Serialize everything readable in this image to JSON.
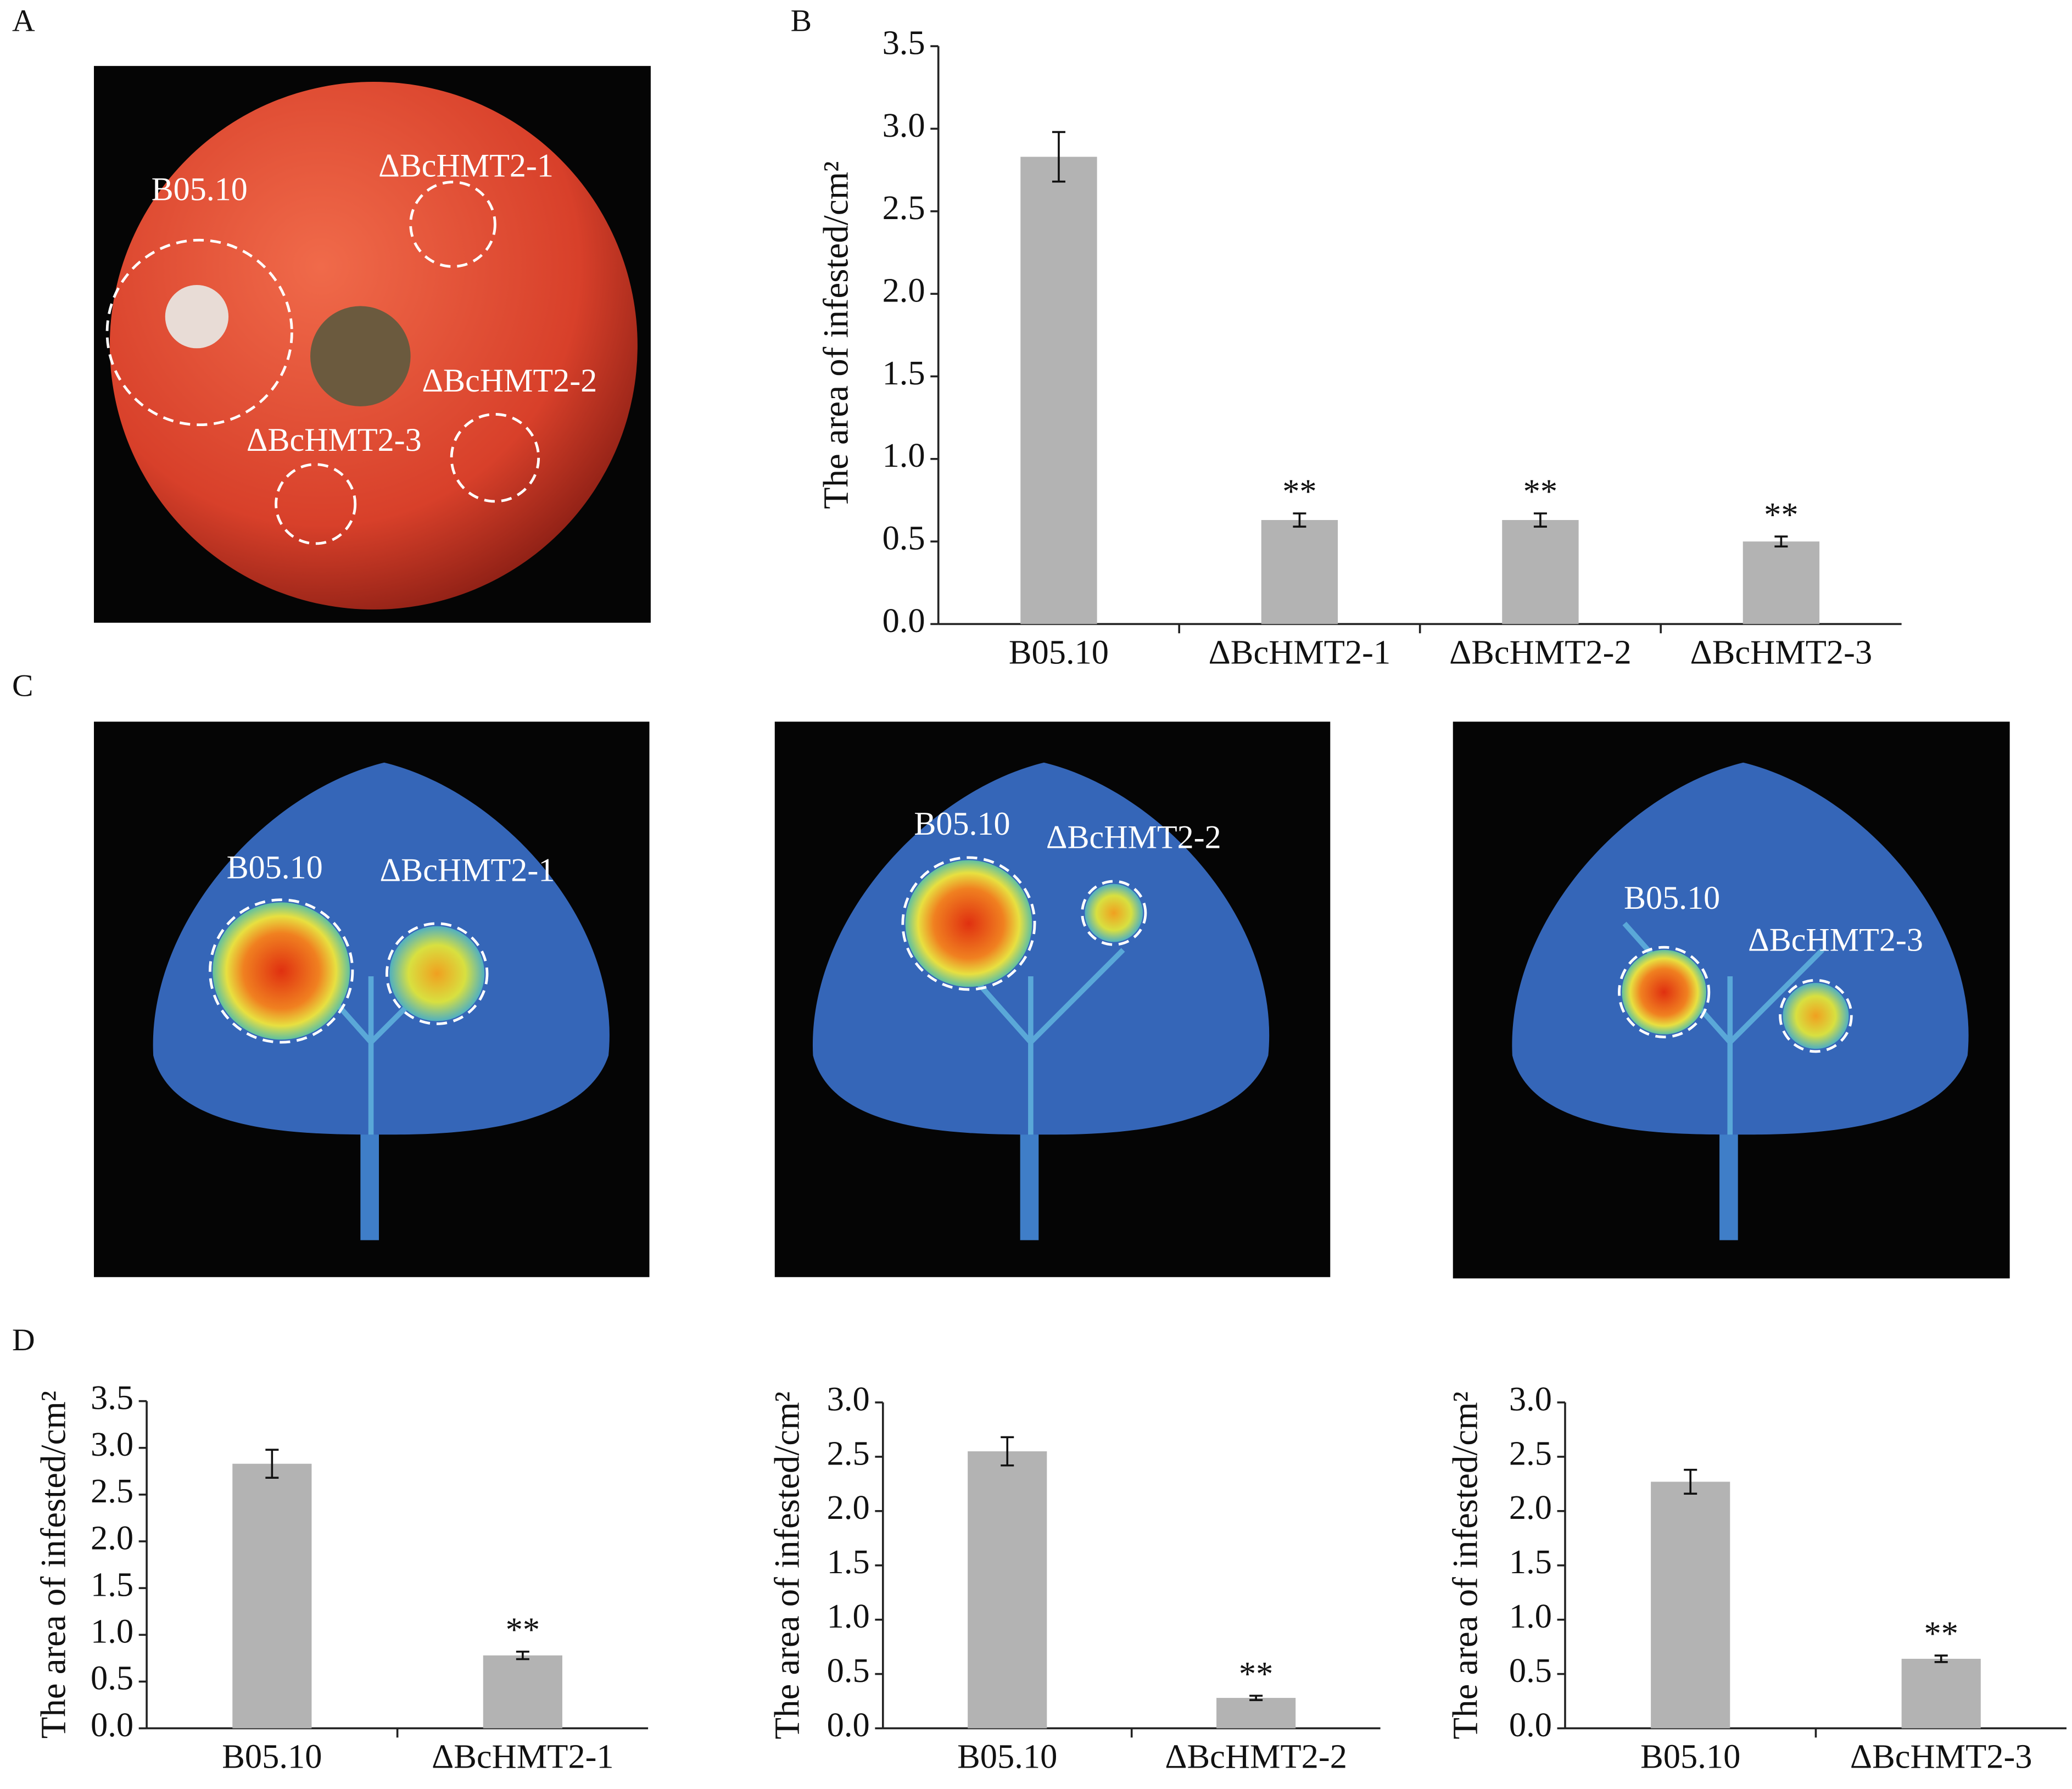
{
  "panel_labels": [
    "A",
    "B",
    "C",
    "D"
  ],
  "photo_a": {
    "labels": [
      "B05.10",
      "ΔBcHMT2-1",
      "ΔBcHMT2-2",
      "ΔBcHMT2-3"
    ]
  },
  "photo_c": {
    "leaves": [
      {
        "labels": [
          "B05.10",
          "ΔBcHMT2-1"
        ]
      },
      {
        "labels": [
          "B05.10",
          "ΔBcHMT2-2"
        ]
      },
      {
        "labels": [
          "B05.10",
          "ΔBcHMT2-3"
        ]
      }
    ]
  },
  "chart_data": [
    {
      "type": "bar",
      "y_label": "The area of infested/cm²",
      "color": "#b3b3b3",
      "categories": [
        "B05.10",
        "ΔBcHMT2-1",
        "ΔBcHMT2-2",
        "ΔBcHMT2-3"
      ],
      "values": [
        2.83,
        0.63,
        0.63,
        0.5
      ],
      "errors": [
        0.15,
        0.04,
        0.04,
        0.03
      ],
      "significance": [
        null,
        "**",
        "**",
        "**"
      ],
      "ylim": [
        0,
        3.5
      ],
      "yticks": [
        {
          "value": 0,
          "label": "0.0"
        },
        0.5,
        {
          "value": 1,
          "label": "1.0"
        },
        1.5,
        {
          "value": 2,
          "label": "2.0"
        },
        2.5,
        {
          "value": 3,
          "label": "3.0"
        },
        3.5
      ]
    },
    {
      "type": "bar",
      "y_label": "The area of infested/cm²",
      "color": "#b3b3b3",
      "categories": [
        "B05.10",
        "ΔBcHMT2-1"
      ],
      "values": [
        2.83,
        0.78
      ],
      "errors": [
        0.15,
        0.04
      ],
      "significance": [
        null,
        "**"
      ],
      "ylim": [
        0,
        3.5
      ],
      "yticks": [
        {
          "value": 0,
          "label": "0.0"
        },
        0.5,
        {
          "value": 1,
          "label": "1.0"
        },
        1.5,
        {
          "value": 2,
          "label": "2.0"
        },
        2.5,
        {
          "value": 3,
          "label": "3.0"
        },
        3.5
      ]
    },
    {
      "type": "bar",
      "y_label": "The area of infested/cm²",
      "color": "#b3b3b3",
      "categories": [
        "B05.10",
        "ΔBcHMT2-2"
      ],
      "values": [
        2.55,
        0.28
      ],
      "errors": [
        0.13,
        0.02
      ],
      "significance": [
        null,
        "**"
      ],
      "ylim": [
        0,
        3
      ],
      "yticks": [
        {
          "value": 0,
          "label": "0.0"
        },
        0.5,
        {
          "value": 1,
          "label": "1.0"
        },
        1.5,
        {
          "value": 2,
          "label": "2.0"
        },
        2.5,
        {
          "value": 3,
          "label": "3.0"
        }
      ]
    },
    {
      "type": "bar",
      "y_label": "The area of infested/cm²",
      "color": "#b3b3b3",
      "categories": [
        "B05.10",
        "ΔBcHMT2-3"
      ],
      "values": [
        2.27,
        0.64
      ],
      "errors": [
        0.11,
        0.03
      ],
      "significance": [
        null,
        "**"
      ],
      "ylim": [
        0,
        3
      ],
      "yticks": [
        {
          "value": 0,
          "label": "0.0"
        },
        0.5,
        {
          "value": 1,
          "label": "1.0"
        },
        1.5,
        {
          "value": 2,
          "label": "2.0"
        },
        2.5,
        {
          "value": 3,
          "label": "3.0"
        }
      ]
    }
  ]
}
